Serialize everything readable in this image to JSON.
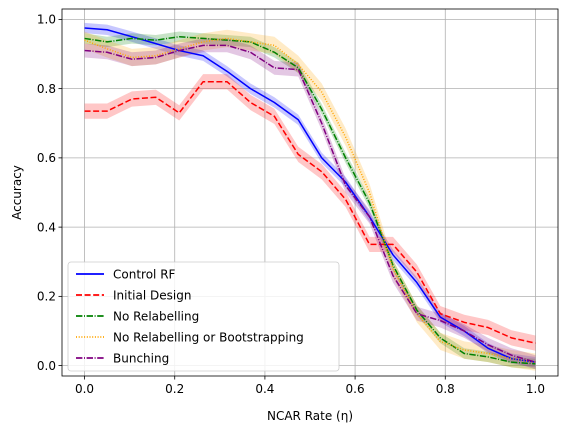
{
  "chart_data": {
    "type": "line",
    "title": "",
    "xlabel": "NCAR Rate (η)",
    "ylabel": "Accuracy",
    "xlim": [
      -0.05,
      1.05
    ],
    "ylim": [
      -0.03,
      1.03
    ],
    "xticks": [
      0.0,
      0.2,
      0.4,
      0.6,
      0.8,
      1.0
    ],
    "xtick_labels": [
      "0.0",
      "0.2",
      "0.4",
      "0.6",
      "0.8",
      "1.0"
    ],
    "yticks": [
      0.0,
      0.2,
      0.4,
      0.6,
      0.8,
      1.0
    ],
    "ytick_labels": [
      "0.0",
      "0.2",
      "0.4",
      "0.6",
      "0.8",
      "1.0"
    ],
    "grid": true,
    "legend_position": "lower-left",
    "x": [
      0.0,
      0.05,
      0.105,
      0.158,
      0.21,
      0.263,
      0.316,
      0.368,
      0.421,
      0.474,
      0.526,
      0.579,
      0.632,
      0.684,
      0.737,
      0.789,
      0.842,
      0.895,
      0.947,
      1.0
    ],
    "series": [
      {
        "name": "Control RF",
        "color": "#0000ff",
        "style": "solid",
        "values": [
          0.975,
          0.97,
          0.95,
          0.93,
          0.91,
          0.895,
          0.85,
          0.8,
          0.76,
          0.71,
          0.6,
          0.53,
          0.43,
          0.32,
          0.24,
          0.14,
          0.1,
          0.05,
          0.02,
          0.01
        ],
        "band": 0.015
      },
      {
        "name": "Initial Design",
        "color": "#ff0000",
        "style": "dashed",
        "values": [
          0.735,
          0.735,
          0.77,
          0.775,
          0.73,
          0.82,
          0.82,
          0.76,
          0.72,
          0.61,
          0.56,
          0.48,
          0.35,
          0.35,
          0.27,
          0.15,
          0.125,
          0.11,
          0.08,
          0.065
        ],
        "band": 0.022
      },
      {
        "name": "No Relabelling",
        "color": "#008000",
        "style": "dashdot",
        "values": [
          0.945,
          0.935,
          0.945,
          0.94,
          0.95,
          0.945,
          0.94,
          0.935,
          0.905,
          0.86,
          0.74,
          0.6,
          0.47,
          0.29,
          0.16,
          0.08,
          0.035,
          0.025,
          0.01,
          0.005
        ],
        "band": 0.015
      },
      {
        "name": "No Relabelling or Bootstrapping",
        "color": "#ffa500",
        "style": "dotted",
        "values": [
          0.94,
          0.915,
          0.89,
          0.895,
          0.915,
          0.935,
          0.945,
          0.935,
          0.925,
          0.87,
          0.79,
          0.66,
          0.5,
          0.28,
          0.15,
          0.07,
          0.045,
          0.035,
          0.02,
          0.01
        ],
        "band": 0.025
      },
      {
        "name": "Bunching",
        "color": "#800080",
        "style": "dashdot",
        "values": [
          0.91,
          0.905,
          0.885,
          0.89,
          0.91,
          0.925,
          0.925,
          0.905,
          0.86,
          0.855,
          0.7,
          0.52,
          0.43,
          0.26,
          0.15,
          0.13,
          0.1,
          0.06,
          0.03,
          0.01
        ],
        "band": 0.02
      }
    ]
  }
}
